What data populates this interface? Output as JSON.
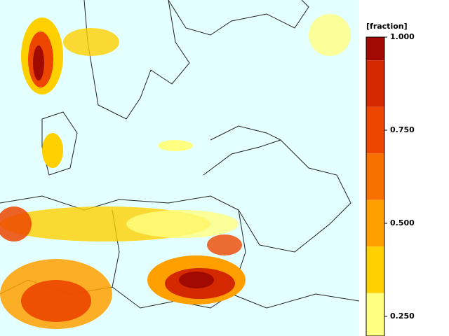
{
  "colorbar": {
    "title": "[fraction]",
    "lim": [
      0.1875,
      1
    ],
    "ticks": [
      {
        "value": 1,
        "label": "1.000"
      },
      {
        "value": 0.75,
        "label": "0.750"
      },
      {
        "value": 0.5,
        "label": "0.500"
      },
      {
        "value": 0.25,
        "label": "0.250"
      }
    ],
    "bands": [
      {
        "from": 0.9375,
        "to": 1,
        "color": "#a00a00"
      },
      {
        "from": 0.8125,
        "to": 0.9375,
        "color": "#d42800"
      },
      {
        "from": 0.6875,
        "to": 0.8125,
        "color": "#ec4600"
      },
      {
        "from": 0.5625,
        "to": 0.6875,
        "color": "#f87000"
      },
      {
        "from": 0.4375,
        "to": 0.5625,
        "color": "#ffa000"
      },
      {
        "from": 0.3125,
        "to": 0.4375,
        "color": "#ffd000"
      },
      {
        "from": 0.1875,
        "to": 0.3125,
        "color": "#ffff80"
      }
    ]
  }
}
